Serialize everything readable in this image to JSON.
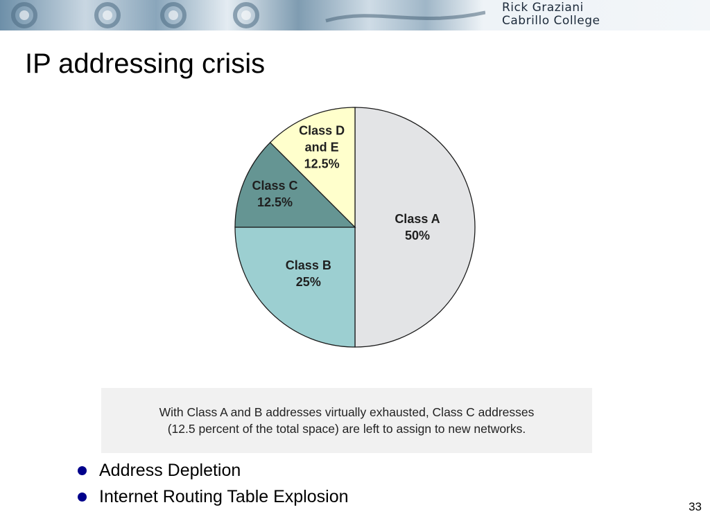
{
  "header": {
    "author_line1": "Rick Graziani",
    "author_line2": "Cabrillo College"
  },
  "slide": {
    "title": "IP addressing crisis",
    "caption_line1": "With Class A and B addresses virtually exhausted, Class C addresses",
    "caption_line2": "(12.5 percent of the total space) are left to assign to new networks.",
    "bullets": [
      "Address Depletion",
      "Internet Routing Table Explosion"
    ],
    "page_number": "33"
  },
  "colors": {
    "bullet": "#00008b"
  },
  "chart_data": {
    "type": "pie",
    "title": "",
    "slices": [
      {
        "name": "Class A",
        "label_lines": [
          "Class A",
          "50%"
        ],
        "value": 50,
        "color": "#e3e4e6"
      },
      {
        "name": "Class B",
        "label_lines": [
          "Class B",
          "25%"
        ],
        "value": 25,
        "color": "#9ccfd1"
      },
      {
        "name": "Class C",
        "label_lines": [
          "Class C",
          "12.5%"
        ],
        "value": 12.5,
        "color": "#659593"
      },
      {
        "name": "Class D and E",
        "label_lines": [
          "Class D",
          "and E",
          "12.5%"
        ],
        "value": 12.5,
        "color": "#ffffcc"
      }
    ],
    "start_angle": "12 o'clock",
    "direction": "clockwise"
  }
}
